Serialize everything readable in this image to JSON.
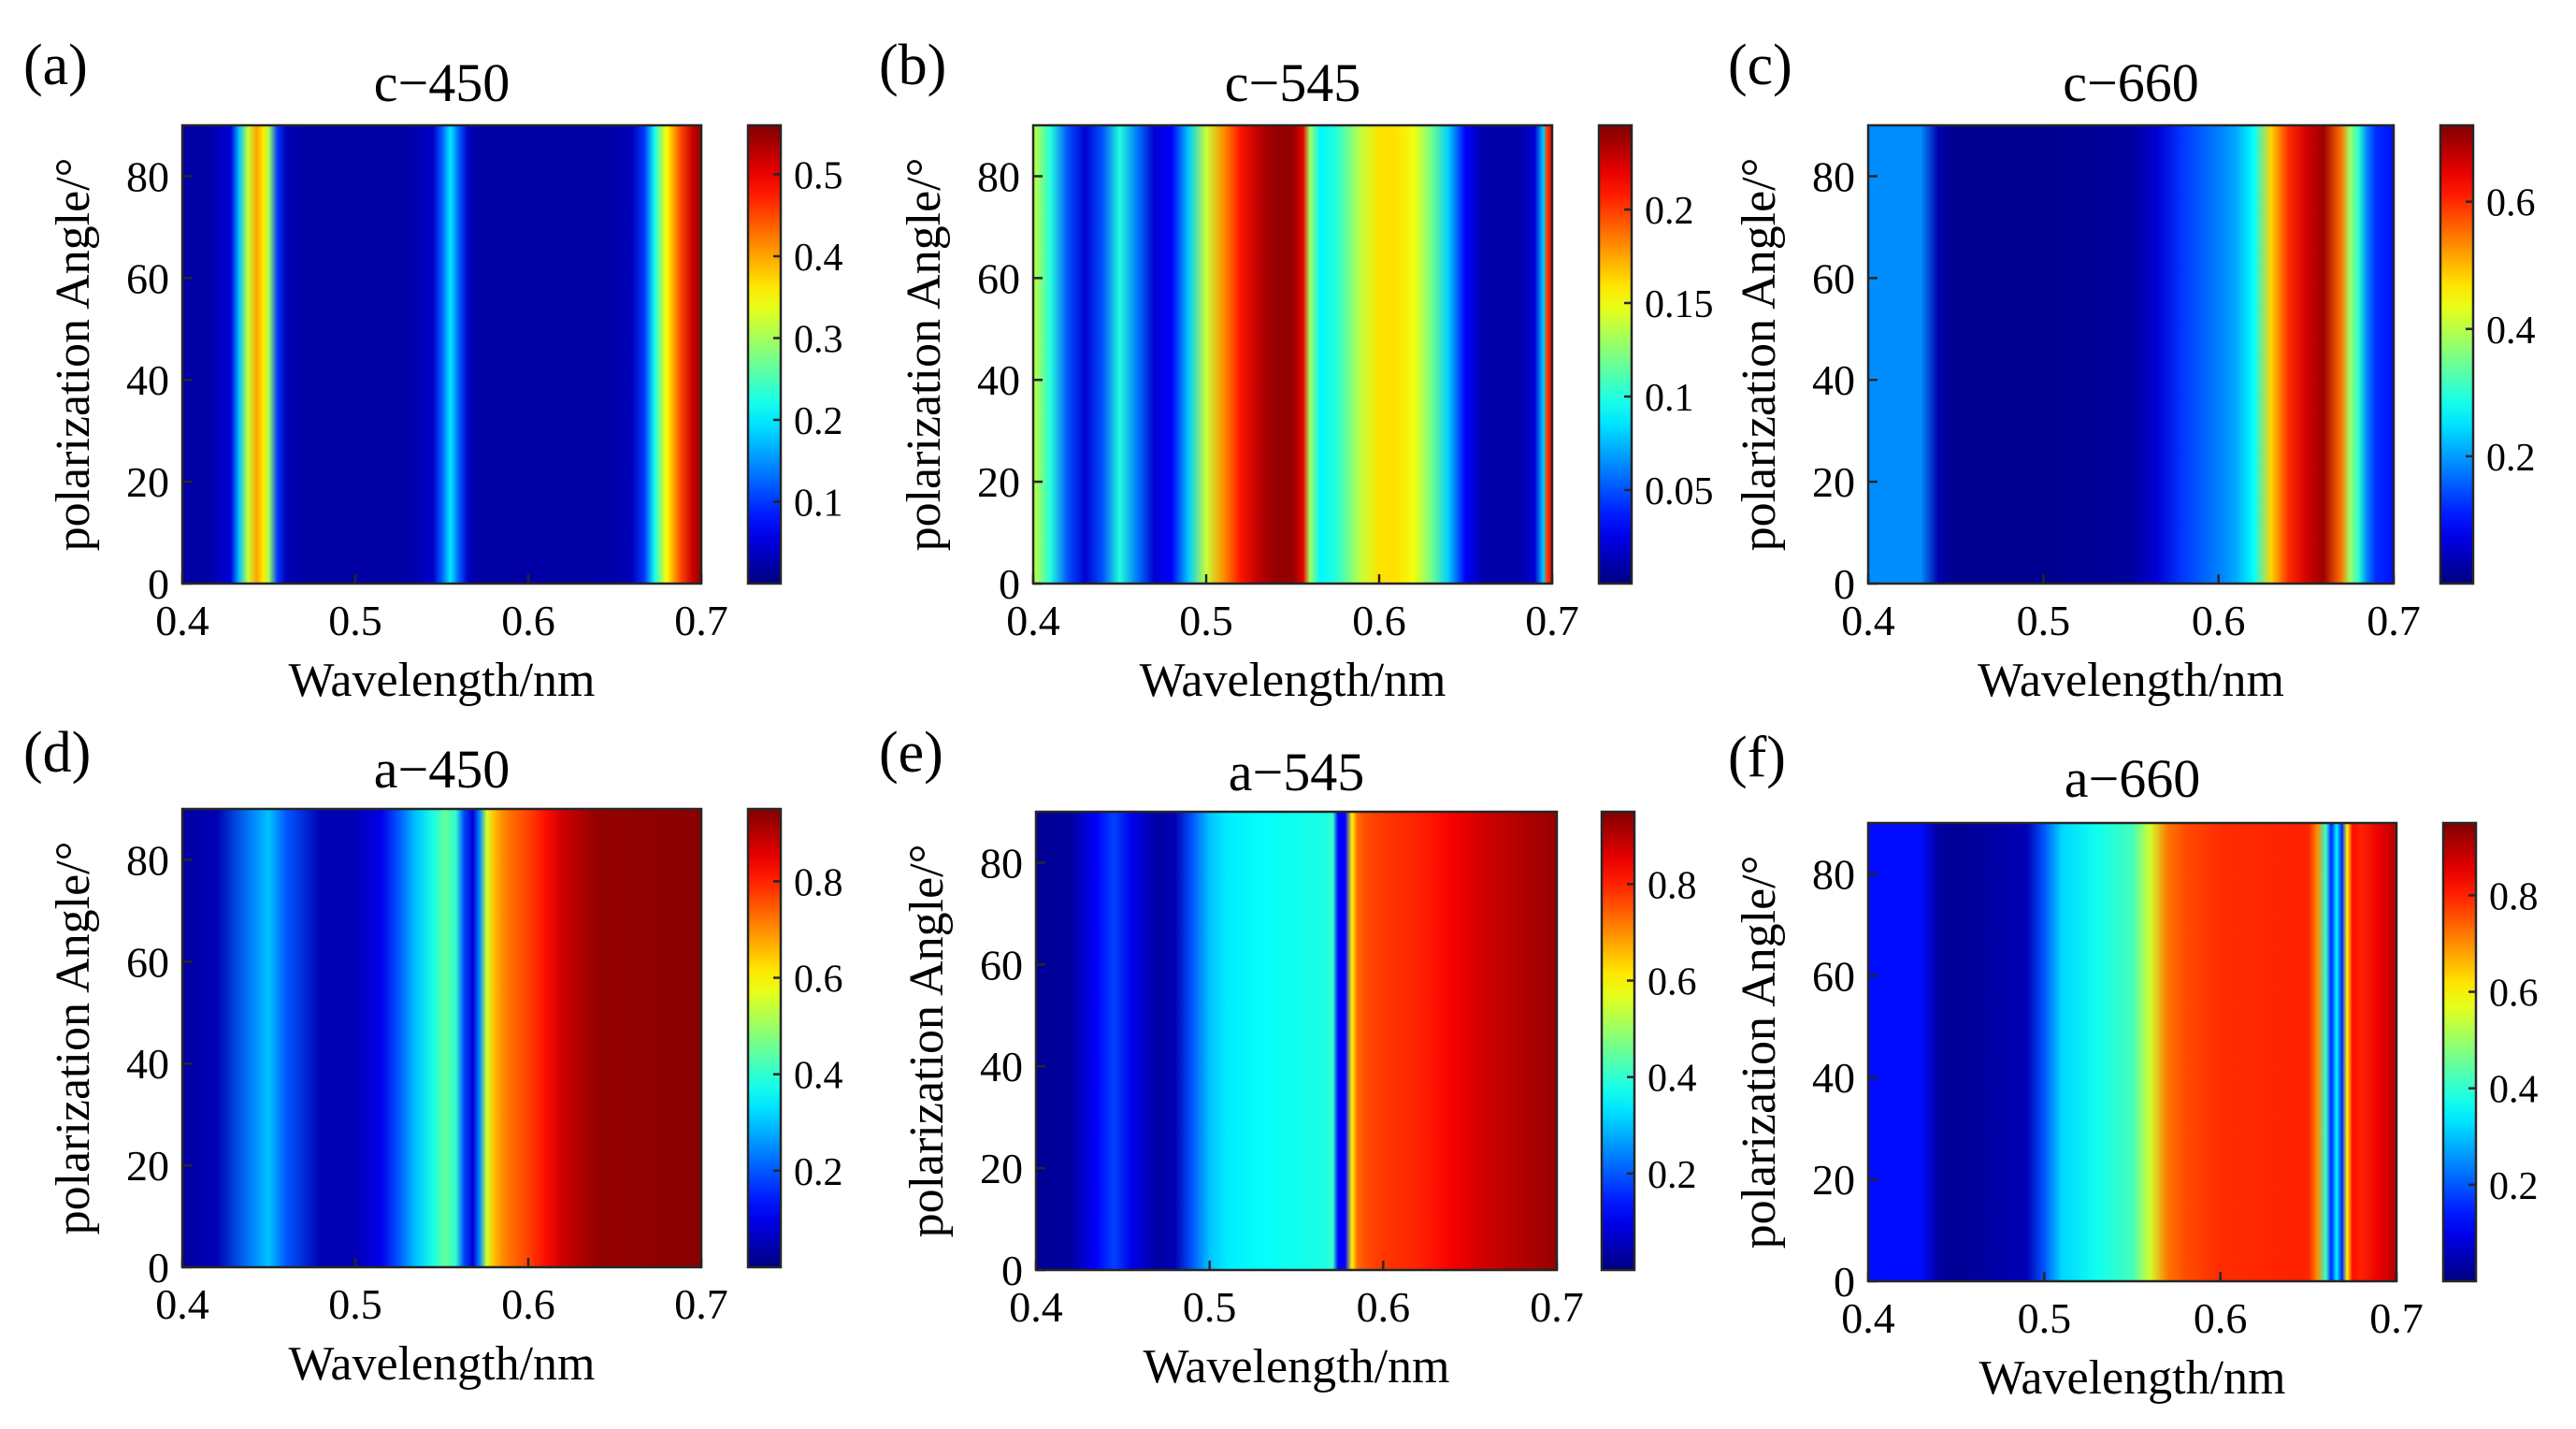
{
  "figure": {
    "background": "#ffffff",
    "colormap": "jet"
  },
  "chart_data": [
    {
      "type": "heatmap",
      "panel_label": "(a)",
      "title": "c−450",
      "xlabel": "Wavelength/nm",
      "ylabel": "polarization Angle/°",
      "xlim": [
        0.4,
        0.7
      ],
      "ylim": [
        0,
        90
      ],
      "x_ticks": [
        "0.4",
        "0.5",
        "0.6",
        "0.7"
      ],
      "y_ticks": [
        "0",
        "20",
        "40",
        "60",
        "80"
      ],
      "clim": [
        0.0,
        0.56
      ],
      "colorbar_ticks": [
        "0.1",
        "0.2",
        "0.3",
        "0.4",
        "0.5"
      ],
      "profile_wavelength": [
        0.4,
        0.415,
        0.428,
        0.433,
        0.438,
        0.443,
        0.447,
        0.45,
        0.455,
        0.46,
        0.47,
        0.5,
        0.53,
        0.545,
        0.55,
        0.555,
        0.56,
        0.565,
        0.57,
        0.6,
        0.64,
        0.66,
        0.667,
        0.673,
        0.68,
        0.688,
        0.695,
        0.7
      ],
      "profile_value": [
        0.02,
        0.02,
        0.05,
        0.18,
        0.32,
        0.4,
        0.36,
        0.3,
        0.1,
        0.03,
        0.02,
        0.02,
        0.02,
        0.04,
        0.12,
        0.2,
        0.12,
        0.04,
        0.02,
        0.02,
        0.02,
        0.03,
        0.1,
        0.22,
        0.35,
        0.45,
        0.52,
        0.55
      ]
    },
    {
      "type": "heatmap",
      "panel_label": "(b)",
      "title": "c−545",
      "xlabel": "Wavelength/nm",
      "ylabel": "polarization Angle/°",
      "xlim": [
        0.4,
        0.7
      ],
      "ylim": [
        0,
        90
      ],
      "x_ticks": [
        "0.4",
        "0.5",
        "0.6",
        "0.7"
      ],
      "y_ticks": [
        "0",
        "20",
        "40",
        "60",
        "80"
      ],
      "clim": [
        0.0,
        0.245
      ],
      "colorbar_ticks": [
        "0.05",
        "0.1",
        "0.15",
        "0.2"
      ],
      "profile_wavelength": [
        0.4,
        0.41,
        0.42,
        0.43,
        0.44,
        0.45,
        0.46,
        0.47,
        0.48,
        0.49,
        0.5,
        0.51,
        0.52,
        0.53,
        0.54,
        0.55,
        0.556,
        0.56,
        0.566,
        0.575,
        0.59,
        0.6,
        0.61,
        0.62,
        0.63,
        0.64,
        0.65,
        0.66,
        0.67,
        0.68,
        0.69,
        0.695,
        0.697,
        0.7
      ],
      "profile_value": [
        0.14,
        0.1,
        0.05,
        0.02,
        0.05,
        0.1,
        0.06,
        0.02,
        0.03,
        0.08,
        0.14,
        0.18,
        0.21,
        0.23,
        0.24,
        0.24,
        0.22,
        0.13,
        0.09,
        0.1,
        0.14,
        0.16,
        0.16,
        0.15,
        0.12,
        0.08,
        0.03,
        0.01,
        0.01,
        0.01,
        0.02,
        0.08,
        0.2,
        0.22
      ]
    },
    {
      "type": "heatmap",
      "panel_label": "(c)",
      "title": "c−660",
      "xlabel": "Wavelength/nm",
      "ylabel": "polarization Angle/°",
      "xlim": [
        0.4,
        0.7
      ],
      "ylim": [
        0,
        90
      ],
      "x_ticks": [
        "0.4",
        "0.5",
        "0.6",
        "0.7"
      ],
      "y_ticks": [
        "0",
        "20",
        "40",
        "60",
        "80"
      ],
      "clim": [
        0.0,
        0.72
      ],
      "colorbar_ticks": [
        "0.2",
        "0.4",
        "0.6"
      ],
      "profile_wavelength": [
        0.4,
        0.43,
        0.44,
        0.45,
        0.5,
        0.55,
        0.565,
        0.58,
        0.6,
        0.61,
        0.62,
        0.63,
        0.64,
        0.65,
        0.66,
        0.67,
        0.675,
        0.68,
        0.685,
        0.69,
        0.7
      ],
      "profile_value": [
        0.19,
        0.19,
        0.03,
        0.01,
        0.01,
        0.02,
        0.06,
        0.13,
        0.18,
        0.21,
        0.27,
        0.48,
        0.6,
        0.66,
        0.7,
        0.55,
        0.38,
        0.3,
        0.18,
        0.12,
        0.1
      ]
    },
    {
      "type": "heatmap",
      "panel_label": "(d)",
      "title": "a−450",
      "xlabel": "Wavelength/nm",
      "ylabel": "polarization Angle/°",
      "xlim": [
        0.4,
        0.7
      ],
      "ylim": [
        0,
        90
      ],
      "x_ticks": [
        "0.4",
        "0.5",
        "0.6",
        "0.7"
      ],
      "y_ticks": [
        "0",
        "20",
        "40",
        "60",
        "80"
      ],
      "clim": [
        0.0,
        0.95
      ],
      "colorbar_ticks": [
        "0.2",
        "0.4",
        "0.6",
        "0.8"
      ],
      "profile_wavelength": [
        0.4,
        0.42,
        0.44,
        0.45,
        0.46,
        0.48,
        0.5,
        0.515,
        0.525,
        0.535,
        0.545,
        0.552,
        0.558,
        0.563,
        0.568,
        0.572,
        0.576,
        0.58,
        0.585,
        0.59,
        0.6,
        0.61,
        0.62,
        0.64,
        0.7
      ],
      "profile_value": [
        0.03,
        0.05,
        0.24,
        0.3,
        0.2,
        0.05,
        0.05,
        0.1,
        0.2,
        0.3,
        0.38,
        0.45,
        0.4,
        0.18,
        0.08,
        0.25,
        0.55,
        0.65,
        0.7,
        0.73,
        0.77,
        0.82,
        0.88,
        0.93,
        0.94
      ]
    },
    {
      "type": "heatmap",
      "panel_label": "(e)",
      "title": "a−545",
      "xlabel": "Wavelength/nm",
      "ylabel": "polarization Angle/°",
      "xlim": [
        0.4,
        0.7
      ],
      "ylim": [
        0,
        90
      ],
      "x_ticks": [
        "0.4",
        "0.5",
        "0.6",
        "0.7"
      ],
      "y_ticks": [
        "0",
        "20",
        "40",
        "60",
        "80"
      ],
      "clim": [
        0.0,
        0.95
      ],
      "colorbar_ticks": [
        "0.2",
        "0.4",
        "0.6",
        "0.8"
      ],
      "profile_wavelength": [
        0.4,
        0.42,
        0.435,
        0.445,
        0.455,
        0.47,
        0.48,
        0.49,
        0.5,
        0.51,
        0.53,
        0.55,
        0.565,
        0.571,
        0.574,
        0.578,
        0.582,
        0.585,
        0.59,
        0.6,
        0.62,
        0.64,
        0.66,
        0.7
      ],
      "profile_value": [
        0.02,
        0.03,
        0.12,
        0.18,
        0.1,
        0.03,
        0.05,
        0.2,
        0.3,
        0.34,
        0.36,
        0.37,
        0.38,
        0.4,
        0.12,
        0.12,
        0.6,
        0.73,
        0.76,
        0.78,
        0.8,
        0.84,
        0.88,
        0.93
      ]
    },
    {
      "type": "heatmap",
      "panel_label": "(f)",
      "title": "a−660",
      "xlabel": "Wavelength/nm",
      "ylabel": "polarization Angle/°",
      "xlim": [
        0.4,
        0.7
      ],
      "ylim": [
        0,
        90
      ],
      "x_ticks": [
        "0.4",
        "0.5",
        "0.6",
        "0.7"
      ],
      "y_ticks": [
        "0",
        "20",
        "40",
        "60",
        "80"
      ],
      "clim": [
        0.0,
        0.95
      ],
      "colorbar_ticks": [
        "0.2",
        "0.4",
        "0.6",
        "0.8"
      ],
      "profile_wavelength": [
        0.4,
        0.43,
        0.44,
        0.45,
        0.49,
        0.5,
        0.51,
        0.53,
        0.55,
        0.56,
        0.57,
        0.58,
        0.6,
        0.64,
        0.65,
        0.655,
        0.66,
        0.663,
        0.666,
        0.669,
        0.672,
        0.675,
        0.68,
        0.69,
        0.7
      ],
      "profile_value": [
        0.13,
        0.13,
        0.03,
        0.02,
        0.05,
        0.2,
        0.32,
        0.37,
        0.42,
        0.55,
        0.72,
        0.76,
        0.79,
        0.8,
        0.8,
        0.7,
        0.4,
        0.15,
        0.35,
        0.15,
        0.6,
        0.82,
        0.8,
        0.85,
        0.9
      ]
    }
  ]
}
